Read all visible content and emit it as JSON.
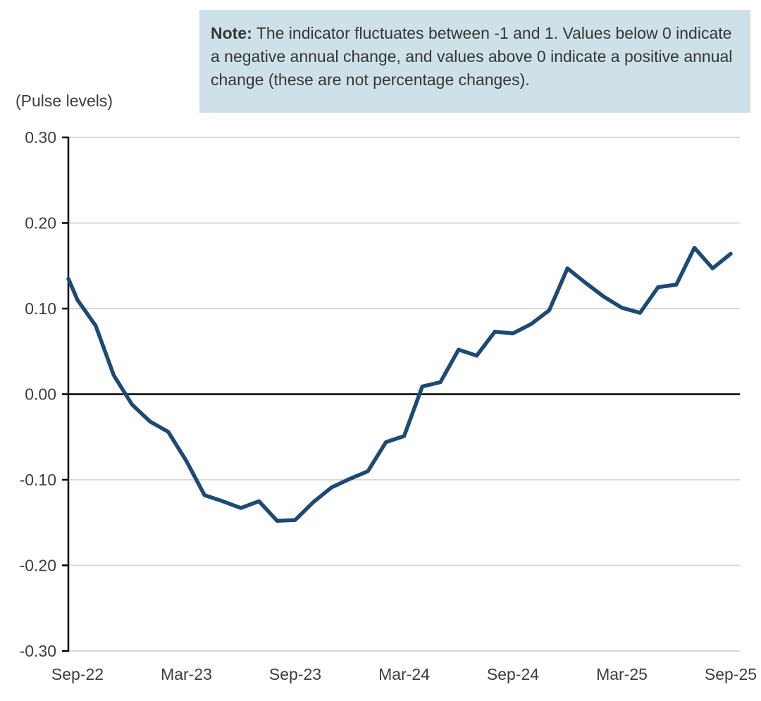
{
  "note": {
    "label": "Note:",
    "text": "The indicator fluctuates between -1 and 1. Values below 0 indicate a negative annual change, and values above 0 indicate a positive annual change (these are not percentage changes)."
  },
  "colors": {
    "line": "#1d4a73",
    "note_bg": "#cfe1e8",
    "grid": "#d9d9d9",
    "axis": "#000000",
    "zero_line": "#000000",
    "text": "#3d3d3d"
  },
  "chart_data": {
    "type": "line",
    "title": "",
    "xlabel": "",
    "ylabel": "(Pulse levels)",
    "ylim": [
      -0.3,
      0.3
    ],
    "ytick_step": 0.1,
    "ytick_values": [
      0.3,
      0.2,
      0.1,
      0.0,
      -0.1,
      -0.2,
      -0.3
    ],
    "ytick_labels": [
      "0.30",
      "0.20",
      "0.10",
      "0.00",
      "-0.10",
      "-0.20",
      "-0.30"
    ],
    "x_tick_labels": [
      "Sep-22",
      "Mar-23",
      "Sep-23",
      "Mar-24",
      "Sep-24",
      "Mar-25",
      "Sep-25"
    ],
    "x_tick_every": 6,
    "grid": "horizontal",
    "legend": "none",
    "zero_line": true,
    "axis_intersect_value": 0.135,
    "categories": [
      "Sep-22",
      "Oct-22",
      "Nov-22",
      "Dec-22",
      "Jan-23",
      "Feb-23",
      "Mar-23",
      "Apr-23",
      "May-23",
      "Jun-23",
      "Jul-23",
      "Aug-23",
      "Sep-23",
      "Oct-23",
      "Nov-23",
      "Dec-23",
      "Jan-24",
      "Feb-24",
      "Mar-24",
      "Apr-24",
      "May-24",
      "Jun-24",
      "Jul-24",
      "Aug-24",
      "Sep-24",
      "Oct-24",
      "Nov-24",
      "Dec-24",
      "Jan-25",
      "Feb-25",
      "Mar-25",
      "Apr-25",
      "May-25",
      "Jun-25",
      "Jul-25",
      "Aug-25",
      "Sep-25"
    ],
    "values": [
      0.11,
      0.08,
      0.022,
      -0.012,
      -0.032,
      -0.044,
      -0.078,
      -0.118,
      -0.125,
      -0.133,
      -0.125,
      -0.148,
      -0.147,
      -0.126,
      -0.109,
      -0.099,
      -0.09,
      -0.056,
      -0.049,
      0.009,
      0.014,
      0.052,
      0.045,
      0.073,
      0.071,
      0.082,
      0.098,
      0.147,
      0.13,
      0.114,
      0.101,
      0.095,
      0.125,
      0.128,
      0.171,
      0.147,
      0.164
    ]
  }
}
